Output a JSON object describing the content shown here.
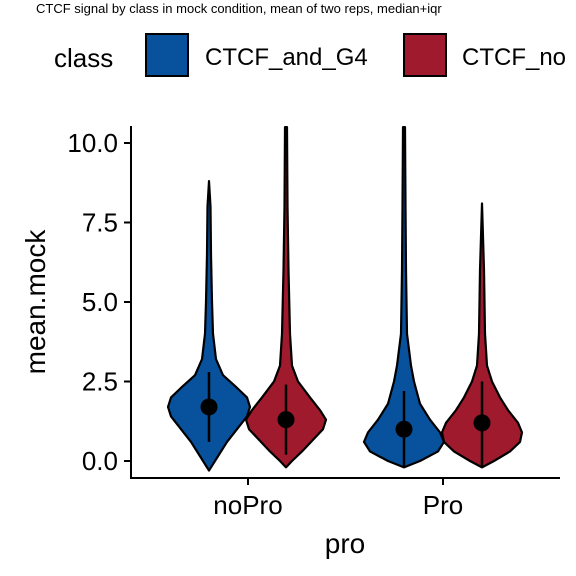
{
  "chart_data": {
    "type": "violin",
    "title": "CTCF signal by class in mock condition, mean of two reps, median+iqr",
    "xlabel": "pro",
    "ylabel": "mean.mock",
    "categories": [
      "noPro",
      "Pro"
    ],
    "ylim": [
      -0.4,
      10.5
    ],
    "yticks": [
      "0.0",
      "2.5",
      "5.0",
      "7.5",
      "10.0"
    ],
    "legend": {
      "title": "class",
      "position": "top"
    },
    "series": [
      {
        "name": "CTCF_and_G4",
        "color": "#08519c",
        "points": [
          {
            "category": "noPro",
            "median": 1.7,
            "q1": 0.6,
            "q3": 2.8,
            "min": -0.3,
            "max": 8.8
          },
          {
            "category": "Pro",
            "median": 1.0,
            "q1": -0.2,
            "q3": 2.2,
            "min": -0.2,
            "max": 10.5
          }
        ]
      },
      {
        "name": "CTCF_no",
        "color": "#9e1a2c",
        "points": [
          {
            "category": "noPro",
            "median": 1.3,
            "q1": 0.2,
            "q3": 2.4,
            "min": -0.2,
            "max": 10.5
          },
          {
            "category": "Pro",
            "median": 1.2,
            "q1": -0.2,
            "q3": 2.5,
            "min": -0.2,
            "max": 8.1
          }
        ]
      }
    ]
  }
}
